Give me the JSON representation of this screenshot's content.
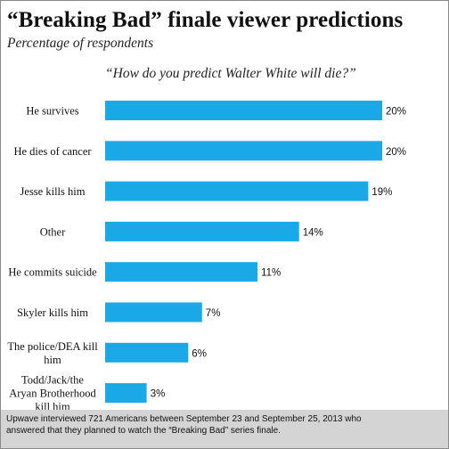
{
  "title": "“Breaking Bad” finale viewer predictions",
  "subtitle": "Percentage of respondents",
  "question": "“How do you predict Walter White will die?”",
  "footer": {
    "line1": "Upwave interviewed 721 Americans between September 23 and September 25, 2013 who",
    "line2": "answered that they planned to watch the “Breaking Bad” series finale."
  },
  "colors": {
    "bar": "#1aa9e6"
  },
  "chart_data": {
    "type": "bar",
    "orientation": "horizontal",
    "title": "“Breaking Bad” finale viewer predictions",
    "subtitle": "Percentage of respondents",
    "categories": [
      [
        "He survives"
      ],
      [
        "He dies of cancer"
      ],
      [
        "Jesse kills him"
      ],
      [
        "Other"
      ],
      [
        "He commits suicide"
      ],
      [
        "Skyler kills him"
      ],
      [
        "The police/DEA kill",
        "him"
      ],
      [
        "Todd/Jack/the",
        "Aryan Brotherhood",
        "kill him"
      ]
    ],
    "values": [
      20,
      20,
      19,
      14,
      11,
      7,
      6,
      3
    ],
    "value_labels": [
      "20%",
      "20%",
      "19%",
      "14%",
      "11%",
      "7%",
      "6%",
      "3%"
    ],
    "xlim": [
      0,
      20
    ],
    "grid": false,
    "legend": "none"
  }
}
